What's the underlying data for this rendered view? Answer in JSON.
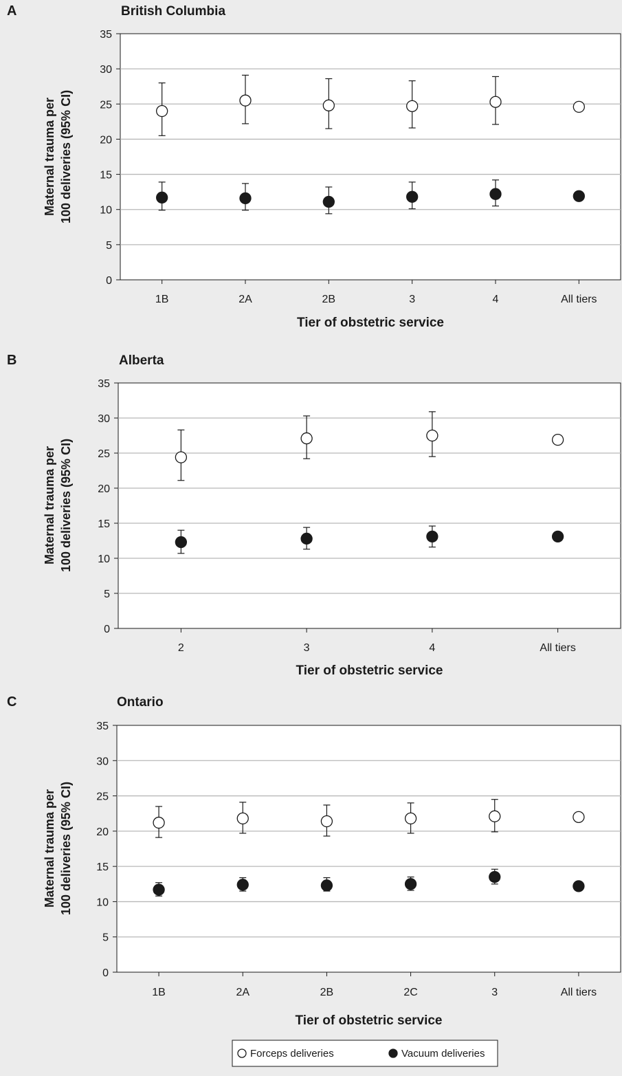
{
  "legend": {
    "forceps_label": "Forceps deliveries",
    "vacuum_label": "Vacuum deliveries"
  },
  "colors": {
    "background": "#ececec",
    "plot_area": "#ffffff",
    "gridline": "#b8b8b8",
    "forceps_marker_fill": "#ffffff",
    "vacuum_marker_fill": "#1a1a1a"
  },
  "chart_data": [
    {
      "panel": "A",
      "type": "scatter",
      "title": "British Columbia",
      "xlabel": "Tier of obstetric service",
      "ylabel_lines": [
        "Maternal trauma per",
        "100 deliveries  (95% CI)"
      ],
      "ylim": [
        0,
        35
      ],
      "yticks": [
        0,
        5,
        10,
        15,
        20,
        25,
        30,
        35
      ],
      "grid": true,
      "categories": [
        "1B",
        "2A",
        "2B",
        "3",
        "4",
        "All tiers"
      ],
      "series": [
        {
          "name": "Forceps deliveries",
          "marker": "open-circle",
          "values": [
            24.0,
            25.5,
            24.8,
            24.7,
            25.3,
            24.6
          ],
          "ci_low": [
            20.5,
            22.2,
            21.5,
            21.6,
            22.1,
            null
          ],
          "ci_high": [
            28.0,
            29.1,
            28.6,
            28.3,
            28.9,
            null
          ]
        },
        {
          "name": "Vacuum deliveries",
          "marker": "filled-circle",
          "values": [
            11.7,
            11.6,
            11.1,
            11.8,
            12.2,
            11.9
          ],
          "ci_low": [
            9.9,
            9.9,
            9.4,
            10.1,
            10.5,
            null
          ],
          "ci_high": [
            13.9,
            13.7,
            13.2,
            13.9,
            14.2,
            null
          ]
        }
      ]
    },
    {
      "panel": "B",
      "type": "scatter",
      "title": "Alberta",
      "xlabel": "Tier of obstetric service",
      "ylabel_lines": [
        "Maternal trauma per",
        "100 deliveries  (95% CI)"
      ],
      "ylim": [
        0,
        35
      ],
      "yticks": [
        0,
        5,
        10,
        15,
        20,
        25,
        30,
        35
      ],
      "grid": true,
      "categories": [
        "2",
        "3",
        "4",
        "All tiers"
      ],
      "series": [
        {
          "name": "Forceps deliveries",
          "marker": "open-circle",
          "values": [
            24.4,
            27.1,
            27.5,
            26.9
          ],
          "ci_low": [
            21.1,
            24.2,
            24.5,
            null
          ],
          "ci_high": [
            28.3,
            30.3,
            30.9,
            null
          ]
        },
        {
          "name": "Vacuum deliveries",
          "marker": "filled-circle",
          "values": [
            12.3,
            12.8,
            13.1,
            13.1
          ],
          "ci_low": [
            10.7,
            11.3,
            11.6,
            null
          ],
          "ci_high": [
            14.0,
            14.4,
            14.6,
            null
          ]
        }
      ]
    },
    {
      "panel": "C",
      "type": "scatter",
      "title": "Ontario",
      "xlabel": "Tier of obstetric service",
      "ylabel_lines": [
        "Maternal trauma per",
        "100 deliveries  (95% CI)"
      ],
      "ylim": [
        0,
        35
      ],
      "yticks": [
        0,
        5,
        10,
        15,
        20,
        25,
        30,
        35
      ],
      "grid": true,
      "categories": [
        "1B",
        "2A",
        "2B",
        "2C",
        "3",
        "All tiers"
      ],
      "series": [
        {
          "name": "Forceps deliveries",
          "marker": "open-circle",
          "values": [
            21.2,
            21.8,
            21.4,
            21.8,
            22.1,
            22.0
          ],
          "ci_low": [
            19.1,
            19.7,
            19.3,
            19.7,
            19.9,
            null
          ],
          "ci_high": [
            23.5,
            24.1,
            23.7,
            24.0,
            24.5,
            null
          ]
        },
        {
          "name": "Vacuum deliveries",
          "marker": "filled-circle",
          "values": [
            11.7,
            12.4,
            12.3,
            12.5,
            13.5,
            12.2
          ],
          "ci_low": [
            10.8,
            11.5,
            11.5,
            11.6,
            12.5,
            null
          ],
          "ci_high": [
            12.7,
            13.4,
            13.4,
            13.5,
            14.6,
            null
          ]
        }
      ]
    }
  ]
}
